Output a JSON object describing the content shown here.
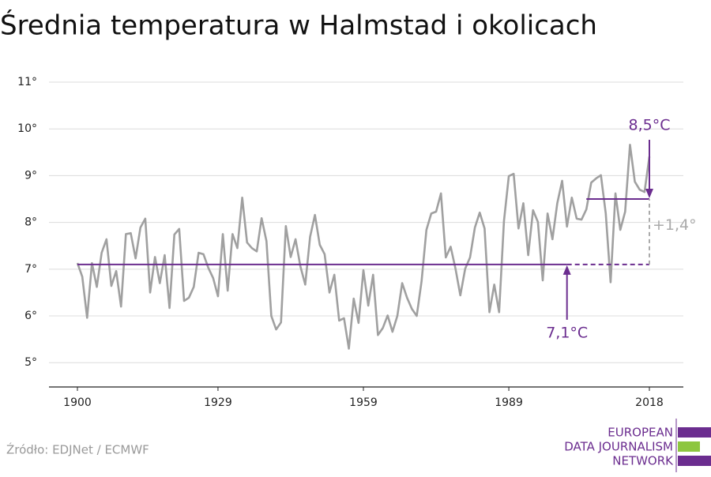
{
  "chart_data": {
    "type": "line",
    "title": "Średnia temperatura w Halmstad i okolicach",
    "source": "Źródło: EDJNet / ECMWF",
    "logo": [
      "EUROPEAN",
      "DATA JOURNALISM",
      "NETWORK"
    ],
    "x": [
      1900,
      1901,
      1902,
      1903,
      1904,
      1905,
      1906,
      1907,
      1908,
      1909,
      1910,
      1911,
      1912,
      1913,
      1914,
      1915,
      1916,
      1917,
      1918,
      1919,
      1920,
      1921,
      1922,
      1923,
      1924,
      1925,
      1926,
      1927,
      1928,
      1929,
      1930,
      1931,
      1932,
      1933,
      1934,
      1935,
      1936,
      1937,
      1938,
      1939,
      1940,
      1941,
      1942,
      1943,
      1944,
      1945,
      1946,
      1947,
      1948,
      1949,
      1950,
      1951,
      1952,
      1953,
      1954,
      1955,
      1956,
      1957,
      1958,
      1959,
      1960,
      1961,
      1962,
      1963,
      1964,
      1965,
      1966,
      1967,
      1968,
      1969,
      1970,
      1971,
      1972,
      1973,
      1974,
      1975,
      1976,
      1977,
      1978,
      1979,
      1980,
      1981,
      1982,
      1983,
      1984,
      1985,
      1986,
      1987,
      1988,
      1989,
      1990,
      1991,
      1992,
      1993,
      1994,
      1995,
      1996,
      1997,
      1998,
      1999,
      2000,
      2001,
      2002,
      2003,
      2004,
      2005,
      2006,
      2007,
      2008,
      2009,
      2010,
      2011,
      2012,
      2013,
      2014,
      2015,
      2016,
      2017,
      2018
    ],
    "series": [
      {
        "color": "#a0a0a0",
        "values": [
          7.13,
          6.84,
          5.96,
          7.13,
          6.62,
          7.35,
          7.64,
          6.64,
          6.96,
          6.2,
          7.75,
          7.77,
          7.23,
          7.89,
          8.08,
          6.5,
          7.26,
          6.7,
          7.3,
          6.17,
          7.74,
          7.86,
          6.32,
          6.39,
          6.62,
          7.35,
          7.32,
          7.03,
          6.81,
          6.42,
          7.75,
          6.54,
          7.75,
          7.45,
          8.53,
          7.57,
          7.45,
          7.38,
          8.09,
          7.6,
          6.0,
          5.71,
          5.86,
          7.92,
          7.26,
          7.64,
          7.06,
          6.67,
          7.69,
          8.16,
          7.52,
          7.32,
          6.5,
          6.88,
          5.9,
          5.95,
          5.3,
          6.37,
          5.85,
          6.98,
          6.22,
          6.88,
          5.59,
          5.74,
          6.01,
          5.66,
          6.0,
          6.7,
          6.39,
          6.15,
          6.0,
          6.74,
          7.84,
          8.19,
          8.23,
          8.62,
          7.25,
          7.48,
          7.01,
          6.44,
          7.01,
          7.25,
          7.89,
          8.21,
          7.87,
          6.08,
          6.67,
          6.08,
          8.03,
          8.99,
          9.04,
          7.87,
          8.41,
          7.3,
          8.26,
          8.01,
          6.76,
          8.19,
          7.64,
          8.41,
          8.89,
          7.91,
          8.53,
          8.08,
          8.06,
          8.28,
          8.85,
          8.94,
          9.01,
          8.19,
          6.72,
          8.62,
          7.84,
          8.23,
          9.66,
          8.87,
          8.7,
          8.65,
          9.41
        ]
      }
    ],
    "xlim": [
      1894,
      2024
    ],
    "xticks": [
      1900,
      1929,
      1959,
      1989,
      2018
    ],
    "ylim": [
      4.48,
      11.3
    ],
    "yticks": [
      {
        "value": 5,
        "label": "5°"
      },
      {
        "value": 6,
        "label": "6°"
      },
      {
        "value": 7,
        "label": "7°"
      },
      {
        "value": 8,
        "label": "8°"
      },
      {
        "value": 9,
        "label": "9°"
      },
      {
        "value": 10,
        "label": "10°"
      },
      {
        "value": 11,
        "label": "11°"
      }
    ],
    "grid": true,
    "reference_color": "#6b2d8f",
    "reference_lines": [
      {
        "value": 7.1,
        "label": "7,1°C",
        "x": [
          1900,
          2018
        ],
        "solid_until": 2001,
        "arrow_at": 2001
      },
      {
        "value": 8.5,
        "label": "8,5°C",
        "x": [
          2005,
          2018
        ],
        "arrow_at": 2018
      }
    ],
    "difference": {
      "value": 1.4,
      "label": "+1,4°",
      "at": 2018
    }
  }
}
